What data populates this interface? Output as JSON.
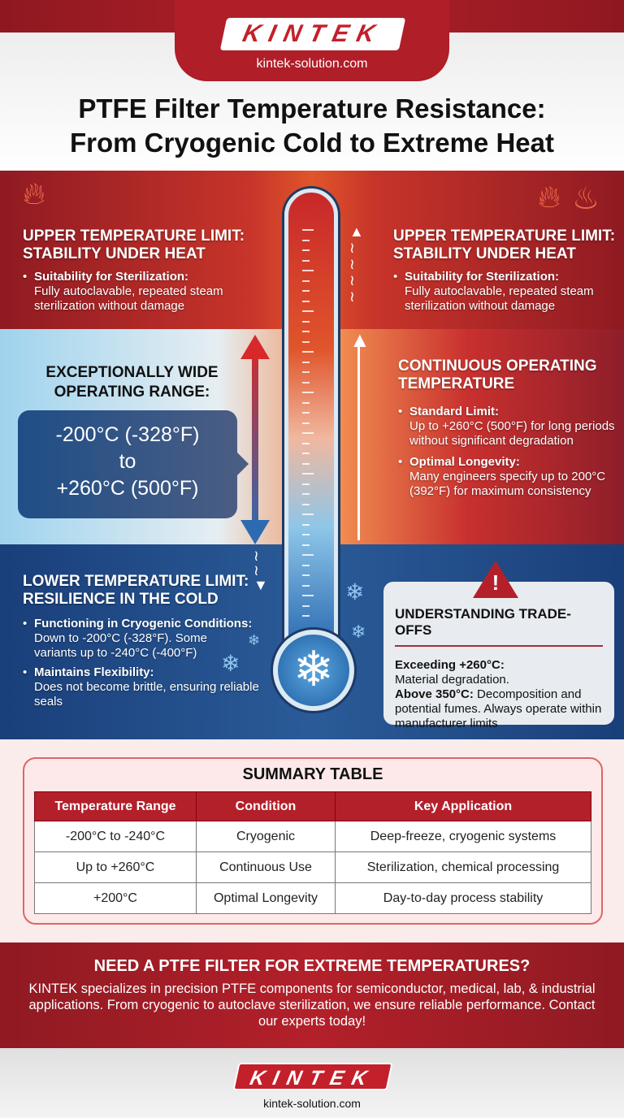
{
  "brand": {
    "name": "KINTEK",
    "url": "kintek-solution.com",
    "accent": "#b3202a"
  },
  "title": {
    "line1": "PTFE Filter Temperature Resistance:",
    "line2": "From Cryogenic Cold to Extreme Heat"
  },
  "upper_left": {
    "heading1": "UPPER TEMPERATURE LIMIT:",
    "heading2": "STABILITY UNDER HEAT",
    "bullet_title": "Suitability for Sterilization:",
    "bullet_text": "Fully autoclavable, repeated steam sterilization without damage"
  },
  "upper_right": {
    "heading1": "UPPER TEMPERATURE LIMIT:",
    "heading2": "STABILITY UNDER HEAT",
    "bullet_title": "Suitability for Sterilization:",
    "bullet_text": "Fully autoclavable, repeated steam sterilization without damage"
  },
  "range": {
    "heading1": "EXCEPTIONALLY WIDE",
    "heading2": "OPERATING RANGE:",
    "low": "-200°C (-328°F)",
    "to": "to",
    "high": "+260°C (500°F)"
  },
  "continuous": {
    "heading1": "CONTINUOUS OPERATING",
    "heading2": "TEMPERATURE",
    "items": [
      {
        "title": "Standard Limit:",
        "text": "Up to +260°C (500°F) for long periods without significant degradation"
      },
      {
        "title": "Optimal Longevity:",
        "text": "Many engineers specify up to 200°C (392°F) for maximum consistency"
      }
    ]
  },
  "lower": {
    "heading1": "LOWER TEMPERATURE LIMIT:",
    "heading2": "RESILIENCE IN THE COLD",
    "items": [
      {
        "title": "Functioning in Cryogenic Conditions:",
        "text": "Down to -200°C (-328°F). Some variants up to -240°C (-400°F)"
      },
      {
        "title": "Maintains Flexibility:",
        "text": "Does not become brittle, ensuring reliable seals"
      }
    ]
  },
  "tradeoffs": {
    "title": "UNDERSTANDING TRADE-OFFS",
    "item1_title": "Exceeding +260°C:",
    "item1_text": "Material degradation.",
    "item2_title": "Above 350°C:",
    "item2_text": " Decomposition and potential fumes. Always operate within manufacturer limits"
  },
  "summary": {
    "title": "SUMMARY TABLE",
    "headers": [
      "Temperature Range",
      "Condition",
      "Key Application"
    ],
    "rows": [
      [
        "-200°C to -240°C",
        "Cryogenic",
        "Deep-freeze, cryogenic systems"
      ],
      [
        "Up to +260°C",
        "Continuous Use",
        "Sterilization, chemical processing"
      ],
      [
        "+200°C",
        "Optimal Longevity",
        "Day-to-day process stability"
      ]
    ]
  },
  "cta": {
    "heading": "NEED A PTFE FILTER FOR EXTREME TEMPERATURES?",
    "text": "KINTEK specializes in precision PTFE components for semiconductor, medical, lab, & industrial applications. From cryogenic to autoclave sterilization, we ensure reliable performance. Contact our experts today!"
  },
  "icons": [
    "flame-icon",
    "cooking-pot-icon",
    "snowflake-icon",
    "warning-icon",
    "arrow-up-icon",
    "arrow-down-icon",
    "thermometer-icon"
  ]
}
